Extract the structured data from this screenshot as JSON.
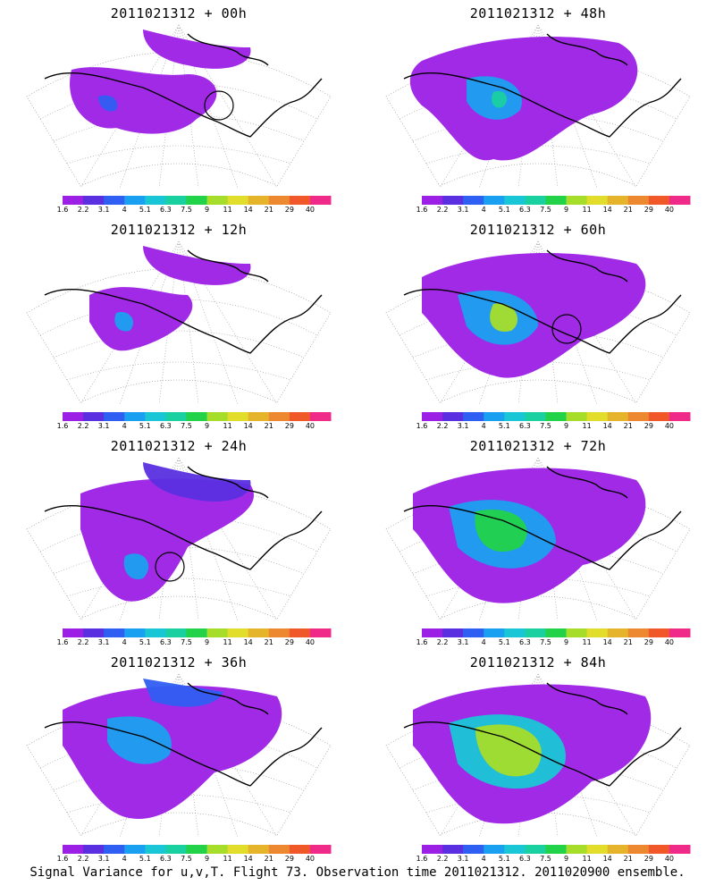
{
  "colorscale": {
    "colors": [
      "#9c1fe6",
      "#5a2fe0",
      "#2f5ef2",
      "#1aa0f0",
      "#19c6d6",
      "#1ad0a0",
      "#22d34a",
      "#a6dd2a",
      "#e2dc2a",
      "#e6b42a",
      "#ee8830",
      "#f0582a",
      "#f02a88"
    ],
    "labels": [
      "1.6",
      "2.2",
      "3.1",
      "4",
      "5.1",
      "6.3",
      "7.5",
      "9",
      "11",
      "14",
      "21",
      "29",
      "40"
    ]
  },
  "panels": [
    {
      "title": "2011021312 + 00h",
      "lead_hours": 0
    },
    {
      "title": "2011021312 + 48h",
      "lead_hours": 48
    },
    {
      "title": "2011021312 + 12h",
      "lead_hours": 12
    },
    {
      "title": "2011021312 + 60h",
      "lead_hours": 60
    },
    {
      "title": "2011021312 + 24h",
      "lead_hours": 24
    },
    {
      "title": "2011021312 + 72h",
      "lead_hours": 72
    },
    {
      "title": "2011021312 + 36h",
      "lead_hours": 36
    },
    {
      "title": "2011021312 + 84h",
      "lead_hours": 84
    }
  ],
  "footer": "Signal Variance for u,v,T. Flight 73. Observation time 2011021312. 2011020900 ensemble.",
  "chart_data": {
    "type": "heatmap",
    "field": "Signal Variance for u,v,T",
    "flight": "73",
    "observation_time": "2011021312",
    "ensemble": "2011020900",
    "lead_times_hours": [
      0,
      12,
      24,
      36,
      48,
      60,
      72,
      84
    ],
    "color_levels": [
      1.6,
      2.2,
      3.1,
      4,
      5.1,
      6.3,
      7.5,
      9,
      11,
      14,
      21,
      29,
      40
    ]
  }
}
